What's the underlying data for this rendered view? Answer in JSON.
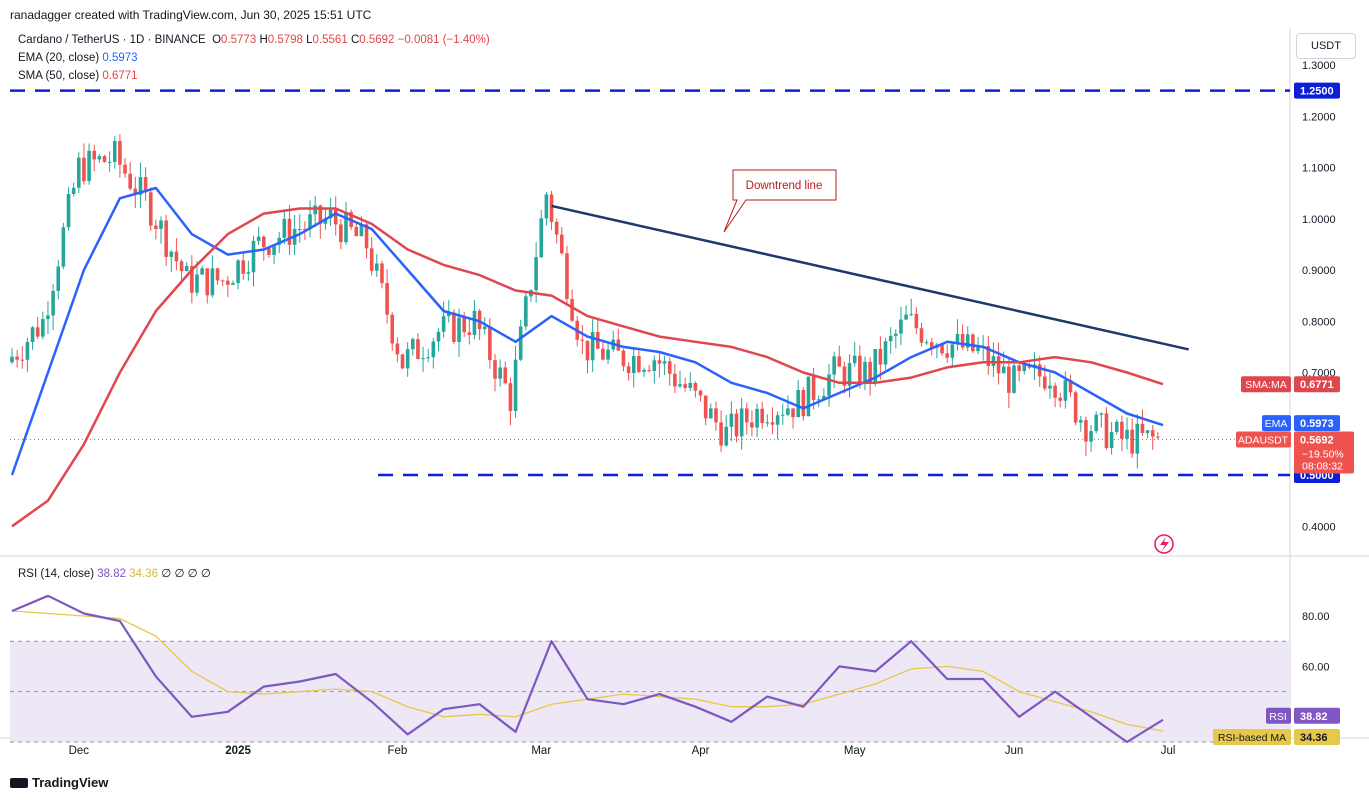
{
  "header": {
    "credit": "ranadagger created with TradingView.com, Jun 30, 2025 15:51 UTC",
    "symbol": "Cardano / TetherUS · 1D · BINANCE",
    "o_label": "O",
    "o_val": "0.5773",
    "h_label": "H",
    "h_val": "0.5798",
    "l_label": "L",
    "l_val": "0.5561",
    "c_label": "C",
    "c_val": "0.5692",
    "change": "−0.0081 (−1.40%)",
    "ema_label": "EMA (20, close)",
    "ema_val": "0.5973",
    "sma_label": "SMA (50, close)",
    "sma_val": "0.6771",
    "currency": "USDT"
  },
  "rsi_legend": {
    "label": "RSI (14, close)",
    "rsi_val": "38.82",
    "ma_val": "34.36",
    "extra": "∅ ∅ ∅ ∅"
  },
  "footer": {
    "brand": "TradingView"
  },
  "colors": {
    "up": "#26a69a",
    "down": "#ef5350",
    "ema": "#2962ff",
    "sma": "#e0464e",
    "trend": "#1c3a6e",
    "level": "#0d1fd6",
    "rsi": "#7e57c2",
    "rsi_ma": "#e8c84a",
    "rsi_band": "#ede7f6"
  },
  "chart_data": [
    {
      "type": "candlestick",
      "title": "Cardano / TetherUS · 1D · BINANCE",
      "y_axis_ticks": [
        "1.3000",
        "1.2000",
        "1.1000",
        "1.0000",
        "0.9000",
        "0.8000",
        "0.7000",
        "0.4000"
      ],
      "ylim": [
        0.36,
        1.34
      ],
      "x_axis_labels": [
        "Dec",
        "2025",
        "Feb",
        "Mar",
        "Apr",
        "May",
        "Jun",
        "Jul"
      ],
      "x_axis_dates": [
        "2024-12-01",
        "2025-01-01",
        "2025-02-01",
        "2025-03-01",
        "2025-04-01",
        "2025-05-01",
        "2025-06-01",
        "2025-07-01"
      ],
      "start_date": "2024-11-18",
      "end_date": "2025-06-30",
      "horizontal_levels": [
        {
          "value": 1.25,
          "label": "1.2500"
        },
        {
          "value": 0.5,
          "label": "0.5000"
        }
      ],
      "annotations": [
        {
          "text": "Downtrend line",
          "from": {
            "date": "2025-03-03",
            "value": 1.025
          },
          "to": {
            "date": "2025-07-05",
            "value": 0.745
          }
        }
      ],
      "price_tags": [
        {
          "name": "SMA:MA",
          "value": "0.6771"
        },
        {
          "name": "EMA",
          "value": "0.5973"
        },
        {
          "name": "ADAUSDT",
          "value": "0.5692",
          "change": "−19.50%",
          "countdown": "08:08:32"
        }
      ],
      "series": [
        {
          "name": "EMA (20, close)",
          "points": [
            [
              "2024-11-18",
              0.5
            ],
            [
              "2024-11-25",
              0.7
            ],
            [
              "2024-12-02",
              0.9
            ],
            [
              "2024-12-09",
              1.04
            ],
            [
              "2024-12-16",
              1.06
            ],
            [
              "2024-12-23",
              0.97
            ],
            [
              "2024-12-30",
              0.93
            ],
            [
              "2025-01-06",
              0.94
            ],
            [
              "2025-01-13",
              0.97
            ],
            [
              "2025-01-20",
              1.01
            ],
            [
              "2025-01-27",
              0.98
            ],
            [
              "2025-02-03",
              0.9
            ],
            [
              "2025-02-10",
              0.82
            ],
            [
              "2025-02-17",
              0.8
            ],
            [
              "2025-02-24",
              0.76
            ],
            [
              "2025-03-03",
              0.81
            ],
            [
              "2025-03-10",
              0.77
            ],
            [
              "2025-03-17",
              0.75
            ],
            [
              "2025-03-24",
              0.74
            ],
            [
              "2025-03-31",
              0.72
            ],
            [
              "2025-04-07",
              0.68
            ],
            [
              "2025-04-14",
              0.66
            ],
            [
              "2025-04-21",
              0.63
            ],
            [
              "2025-04-28",
              0.66
            ],
            [
              "2025-05-05",
              0.69
            ],
            [
              "2025-05-12",
              0.73
            ],
            [
              "2025-05-19",
              0.76
            ],
            [
              "2025-05-26",
              0.75
            ],
            [
              "2025-06-02",
              0.72
            ],
            [
              "2025-06-09",
              0.7
            ],
            [
              "2025-06-16",
              0.66
            ],
            [
              "2025-06-23",
              0.62
            ],
            [
              "2025-06-30",
              0.5973
            ]
          ]
        },
        {
          "name": "SMA (50, close)",
          "points": [
            [
              "2024-11-18",
              0.4
            ],
            [
              "2024-11-25",
              0.45
            ],
            [
              "2024-12-02",
              0.56
            ],
            [
              "2024-12-09",
              0.7
            ],
            [
              "2024-12-16",
              0.82
            ],
            [
              "2024-12-23",
              0.9
            ],
            [
              "2024-12-30",
              0.97
            ],
            [
              "2025-01-06",
              1.01
            ],
            [
              "2025-01-13",
              1.02
            ],
            [
              "2025-01-20",
              1.02
            ],
            [
              "2025-01-27",
              0.99
            ],
            [
              "2025-02-03",
              0.94
            ],
            [
              "2025-02-10",
              0.91
            ],
            [
              "2025-02-17",
              0.89
            ],
            [
              "2025-02-24",
              0.86
            ],
            [
              "2025-03-03",
              0.85
            ],
            [
              "2025-03-10",
              0.81
            ],
            [
              "2025-03-17",
              0.79
            ],
            [
              "2025-03-24",
              0.77
            ],
            [
              "2025-03-31",
              0.76
            ],
            [
              "2025-04-07",
              0.75
            ],
            [
              "2025-04-14",
              0.73
            ],
            [
              "2025-04-21",
              0.7
            ],
            [
              "2025-04-28",
              0.68
            ],
            [
              "2025-05-05",
              0.68
            ],
            [
              "2025-05-12",
              0.69
            ],
            [
              "2025-05-19",
              0.71
            ],
            [
              "2025-05-26",
              0.72
            ],
            [
              "2025-06-02",
              0.72
            ],
            [
              "2025-06-09",
              0.73
            ],
            [
              "2025-06-16",
              0.72
            ],
            [
              "2025-06-23",
              0.7
            ],
            [
              "2025-06-30",
              0.6771
            ]
          ]
        }
      ],
      "candles_close_weekly_sample": [
        [
          "2024-11-18",
          0.72
        ],
        [
          "2024-11-25",
          0.8
        ],
        [
          "2024-12-02",
          1.1
        ],
        [
          "2024-12-09",
          1.12
        ],
        [
          "2024-12-16",
          1.02
        ],
        [
          "2024-12-23",
          0.88
        ],
        [
          "2024-12-30",
          0.88
        ],
        [
          "2025-01-06",
          0.95
        ],
        [
          "2025-01-13",
          0.98
        ],
        [
          "2025-01-20",
          1.0
        ],
        [
          "2025-01-27",
          0.95
        ],
        [
          "2025-02-03",
          0.72
        ],
        [
          "2025-02-10",
          0.78
        ],
        [
          "2025-02-17",
          0.8
        ],
        [
          "2025-02-24",
          0.65
        ],
        [
          "2025-03-03",
          1.05
        ],
        [
          "2025-03-10",
          0.75
        ],
        [
          "2025-03-17",
          0.73
        ],
        [
          "2025-03-24",
          0.73
        ],
        [
          "2025-03-31",
          0.66
        ],
        [
          "2025-04-07",
          0.58
        ],
        [
          "2025-04-14",
          0.63
        ],
        [
          "2025-04-21",
          0.64
        ],
        [
          "2025-04-28",
          0.7
        ],
        [
          "2025-05-05",
          0.7
        ],
        [
          "2025-05-12",
          0.8
        ],
        [
          "2025-05-19",
          0.76
        ],
        [
          "2025-05-26",
          0.74
        ],
        [
          "2025-06-02",
          0.68
        ],
        [
          "2025-06-09",
          0.7
        ],
        [
          "2025-06-16",
          0.6
        ],
        [
          "2025-06-23",
          0.57
        ],
        [
          "2025-06-30",
          0.5692
        ]
      ]
    },
    {
      "type": "line",
      "title": "RSI (14, close)",
      "y_axis_ticks": [
        "80.00",
        "60.00"
      ],
      "ylim": [
        21,
        97
      ],
      "band": [
        30,
        70
      ],
      "midline": 50,
      "series": [
        {
          "name": "RSI",
          "points": [
            [
              "2024-11-18",
              82
            ],
            [
              "2024-11-25",
              88
            ],
            [
              "2024-12-02",
              81
            ],
            [
              "2024-12-09",
              78
            ],
            [
              "2024-12-16",
              56
            ],
            [
              "2024-12-23",
              40
            ],
            [
              "2024-12-30",
              42
            ],
            [
              "2025-01-06",
              52
            ],
            [
              "2025-01-13",
              54
            ],
            [
              "2025-01-20",
              57
            ],
            [
              "2025-01-27",
              46
            ],
            [
              "2025-02-03",
              33
            ],
            [
              "2025-02-10",
              43
            ],
            [
              "2025-02-17",
              45
            ],
            [
              "2025-02-24",
              34
            ],
            [
              "2025-03-03",
              70
            ],
            [
              "2025-03-10",
              47
            ],
            [
              "2025-03-17",
              45
            ],
            [
              "2025-03-24",
              49
            ],
            [
              "2025-03-31",
              44
            ],
            [
              "2025-04-07",
              38
            ],
            [
              "2025-04-14",
              48
            ],
            [
              "2025-04-21",
              44
            ],
            [
              "2025-04-28",
              60
            ],
            [
              "2025-05-05",
              58
            ],
            [
              "2025-05-12",
              70
            ],
            [
              "2025-05-19",
              55
            ],
            [
              "2025-05-26",
              55
            ],
            [
              "2025-06-02",
              40
            ],
            [
              "2025-06-09",
              50
            ],
            [
              "2025-06-16",
              40
            ],
            [
              "2025-06-23",
              30
            ],
            [
              "2025-06-30",
              38.82
            ]
          ]
        },
        {
          "name": "RSI-based MA",
          "points": [
            [
              "2024-11-18",
              82
            ],
            [
              "2024-11-25",
              81
            ],
            [
              "2024-12-02",
              80
            ],
            [
              "2024-12-09",
              79
            ],
            [
              "2024-12-16",
              72
            ],
            [
              "2024-12-23",
              58
            ],
            [
              "2024-12-30",
              50
            ],
            [
              "2025-01-06",
              49
            ],
            [
              "2025-01-13",
              50
            ],
            [
              "2025-01-20",
              51
            ],
            [
              "2025-01-27",
              50
            ],
            [
              "2025-02-03",
              44
            ],
            [
              "2025-02-10",
              40
            ],
            [
              "2025-02-17",
              41
            ],
            [
              "2025-02-24",
              40
            ],
            [
              "2025-03-03",
              45
            ],
            [
              "2025-03-10",
              47
            ],
            [
              "2025-03-17",
              49
            ],
            [
              "2025-03-24",
              48
            ],
            [
              "2025-03-31",
              47
            ],
            [
              "2025-04-07",
              44
            ],
            [
              "2025-04-14",
              44
            ],
            [
              "2025-04-21",
              45
            ],
            [
              "2025-04-28",
              49
            ],
            [
              "2025-05-05",
              53
            ],
            [
              "2025-05-12",
              59
            ],
            [
              "2025-05-19",
              60
            ],
            [
              "2025-05-26",
              58
            ],
            [
              "2025-06-02",
              50
            ],
            [
              "2025-06-09",
              46
            ],
            [
              "2025-06-16",
              42
            ],
            [
              "2025-06-23",
              37
            ],
            [
              "2025-06-30",
              34.36
            ]
          ]
        }
      ],
      "price_tags": [
        {
          "name": "RSI",
          "value": "38.82"
        },
        {
          "name": "RSI-based MA",
          "value": "34.36"
        }
      ]
    }
  ]
}
